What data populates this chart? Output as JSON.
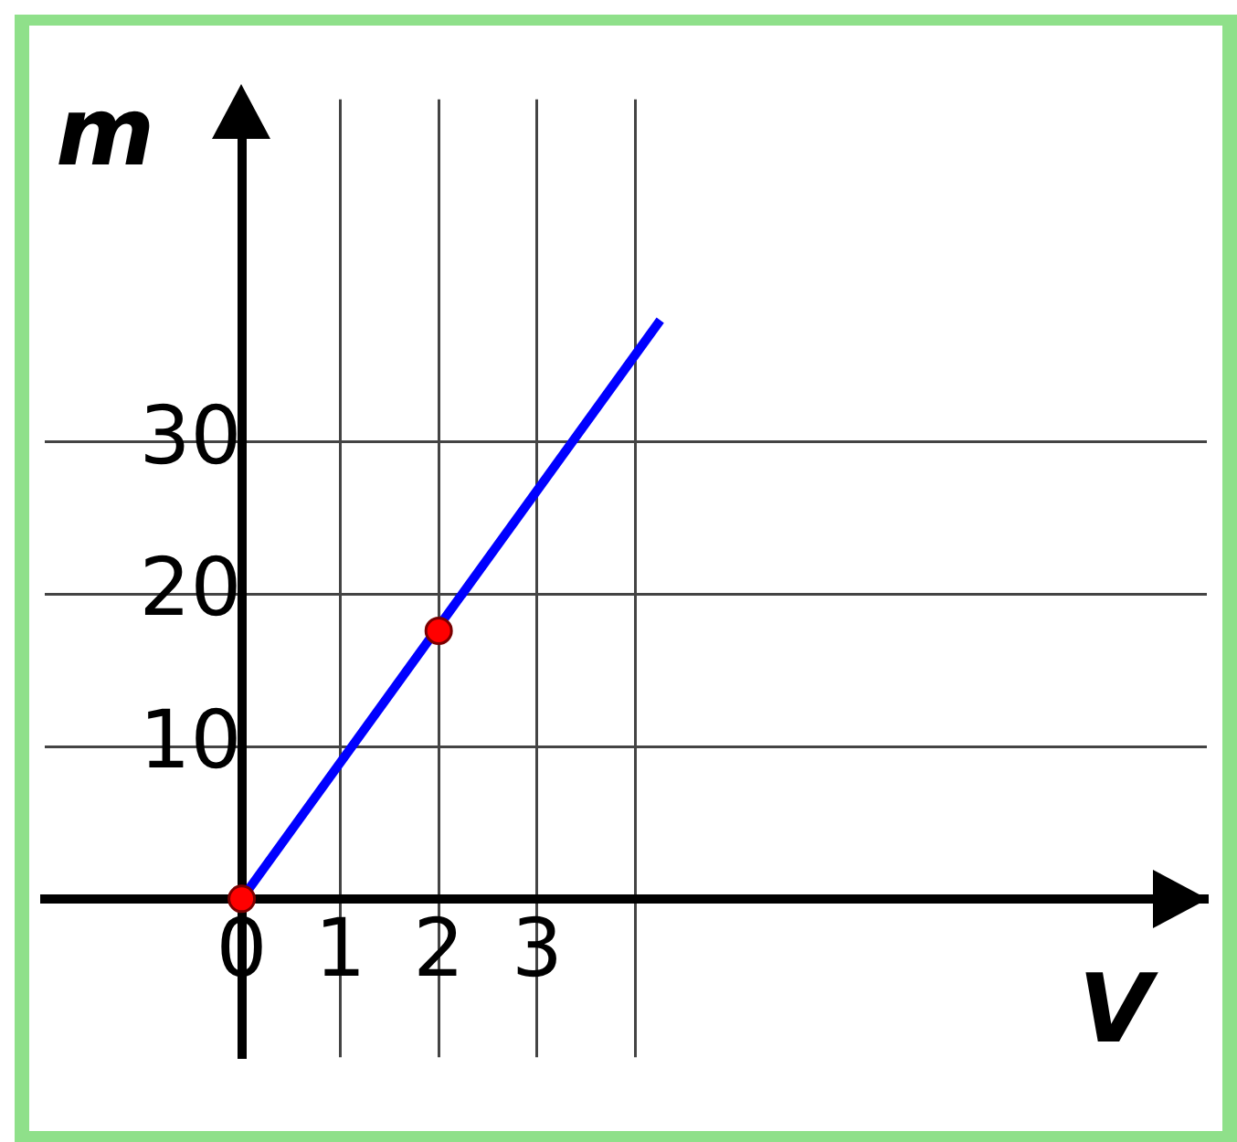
{
  "chart_data": {
    "type": "line",
    "xlabel": "V",
    "ylabel": "m",
    "series": [
      {
        "color": "#0000ff",
        "x": [
          0,
          4.25
        ],
        "values": [
          0,
          38
        ],
        "marker": "none"
      },
      {
        "type": "scatter",
        "color": "#ff0000",
        "x": [
          0,
          2
        ],
        "values": [
          0,
          17.6
        ],
        "marker": "circle"
      }
    ],
    "xlim": [
      -2,
      9.8
    ],
    "ylim": [
      -10.4,
      52.5
    ],
    "xticks": [
      0,
      1,
      2,
      3,
      {
        "value": 4,
        "label": null
      }
    ],
    "yticks": [
      10,
      20,
      30
    ],
    "grid": true,
    "legend": false
  }
}
